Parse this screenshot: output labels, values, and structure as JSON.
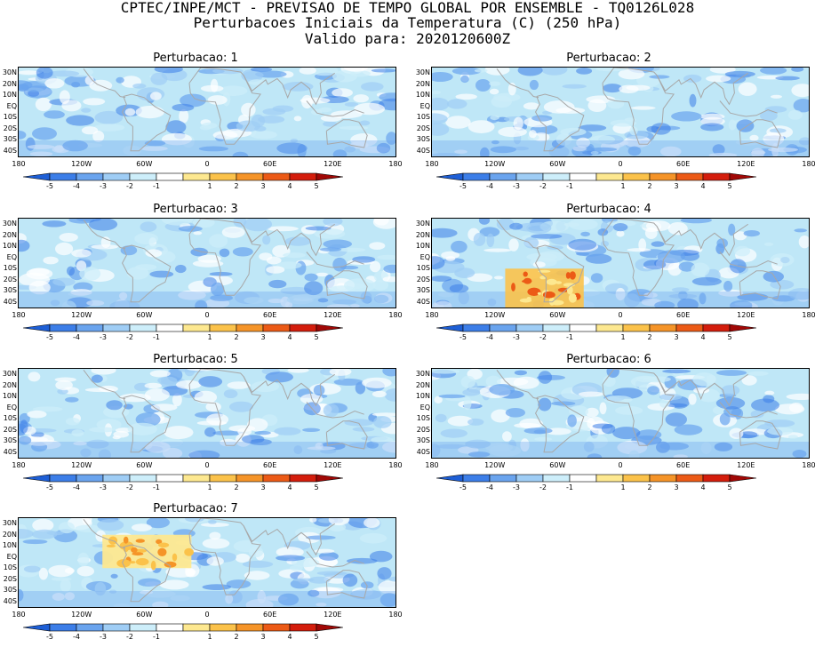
{
  "title": {
    "line1": "CPTEC/INPE/MCT - PREVISAO DE TEMPO GLOBAL POR ENSEMBLE - TQ0126L028",
    "line2": "Perturbacoes Iniciais da Temperatura (C) (250 hPa)",
    "line3": "Valido para: 2020120600Z"
  },
  "panels": [
    {
      "title": "Perturbacao: 1"
    },
    {
      "title": "Perturbacao: 2"
    },
    {
      "title": "Perturbacao: 3"
    },
    {
      "title": "Perturbacao: 4"
    },
    {
      "title": "Perturbacao: 5"
    },
    {
      "title": "Perturbacao: 6"
    },
    {
      "title": "Perturbacao: 7"
    }
  ],
  "lat_labels": [
    "30N",
    "20N",
    "10N",
    "EQ",
    "10S",
    "20S",
    "30S",
    "40S"
  ],
  "lon_labels": [
    "180",
    "120W",
    "60W",
    "0",
    "60E",
    "120E",
    "180"
  ],
  "colorbar": {
    "labels": [
      "-5",
      "-4",
      "-3",
      "-2",
      "-1",
      "1",
      "2",
      "3",
      "4",
      "5"
    ],
    "colors": [
      "#1e5fd6",
      "#3c7ee8",
      "#6aa4ee",
      "#9fcdf5",
      "#cdeefa",
      "#ffffff",
      "#fde890",
      "#fbc24a",
      "#f59428",
      "#ec5a16",
      "#d41d0c",
      "#a10806"
    ]
  },
  "colors": {
    "ocean_light": "#bfe7f7",
    "neg_mid": "#6aa4ee",
    "neg_strong": "#3c7ee8",
    "pos_warm": "#fbc24a",
    "coast": "#a8a8a8"
  }
}
